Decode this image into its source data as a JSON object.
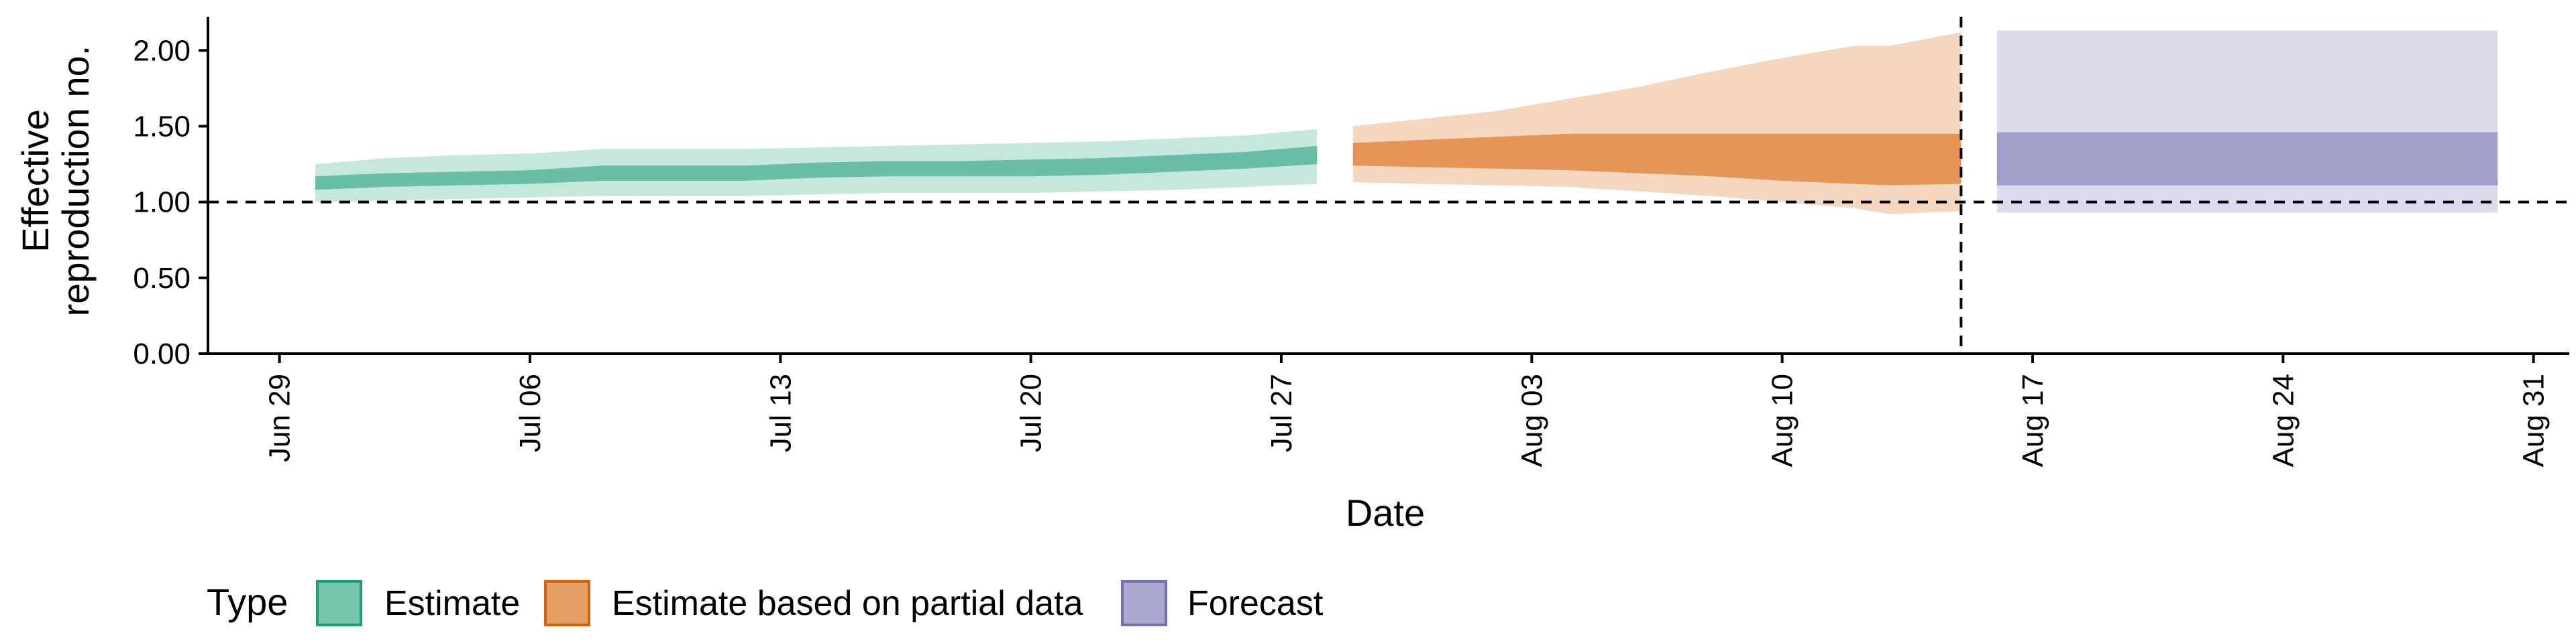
{
  "chart_data": {
    "type": "area",
    "xlabel": "Date",
    "ylabel_lines": [
      "Effective",
      "reproduction no."
    ],
    "ylim": [
      0,
      2.2
    ],
    "yticks": [
      0,
      0.5,
      1.0,
      1.5,
      2.0
    ],
    "ytick_labels": [
      "0.00",
      "0.50",
      "1.00",
      "1.50",
      "2.00"
    ],
    "xlim": [
      "2020-06-27",
      "2020-09-01"
    ],
    "xticks": [
      "2020-06-29",
      "2020-07-06",
      "2020-07-13",
      "2020-07-20",
      "2020-07-27",
      "2020-08-03",
      "2020-08-10",
      "2020-08-17",
      "2020-08-24",
      "2020-08-31"
    ],
    "xtick_labels": [
      "Jun 29",
      "Jul 06",
      "Jul 13",
      "Jul 20",
      "Jul 27",
      "Aug 03",
      "Aug 10",
      "Aug 17",
      "Aug 24",
      "Aug 31"
    ],
    "reference_line_y": 1.0,
    "reference_line_date": "2020-08-15",
    "legend": {
      "title": "Type",
      "position": "bottom",
      "entries": [
        "Estimate",
        "Estimate based on partial data",
        "Forecast"
      ]
    },
    "series": [
      {
        "name": "Estimate",
        "color": "#1b9e77",
        "dates": [
          "2020-06-30",
          "2020-07-02",
          "2020-07-04",
          "2020-07-06",
          "2020-07-08",
          "2020-07-10",
          "2020-07-12",
          "2020-07-14",
          "2020-07-16",
          "2020-07-18",
          "2020-07-20",
          "2020-07-22",
          "2020-07-24",
          "2020-07-26",
          "2020-07-28"
        ],
        "outer_lower": [
          1.0,
          1.01,
          1.02,
          1.03,
          1.04,
          1.04,
          1.04,
          1.05,
          1.06,
          1.06,
          1.06,
          1.07,
          1.08,
          1.1,
          1.12
        ],
        "outer_upper": [
          1.25,
          1.29,
          1.31,
          1.32,
          1.35,
          1.35,
          1.35,
          1.36,
          1.37,
          1.38,
          1.39,
          1.4,
          1.42,
          1.44,
          1.48
        ],
        "inner_lower": [
          1.08,
          1.1,
          1.11,
          1.12,
          1.14,
          1.14,
          1.14,
          1.16,
          1.17,
          1.17,
          1.17,
          1.18,
          1.2,
          1.22,
          1.25
        ],
        "inner_upper": [
          1.17,
          1.19,
          1.2,
          1.21,
          1.24,
          1.24,
          1.24,
          1.26,
          1.27,
          1.27,
          1.28,
          1.29,
          1.31,
          1.33,
          1.37
        ]
      },
      {
        "name": "Estimate based on partial data",
        "color": "#d95f02",
        "dates": [
          "2020-07-29",
          "2020-07-31",
          "2020-08-02",
          "2020-08-04",
          "2020-08-06",
          "2020-08-08",
          "2020-08-10",
          "2020-08-12",
          "2020-08-13",
          "2020-08-15"
        ],
        "outer_lower": [
          1.13,
          1.12,
          1.11,
          1.1,
          1.07,
          1.04,
          1.0,
          0.96,
          0.92,
          0.94
        ],
        "outer_upper": [
          1.5,
          1.55,
          1.6,
          1.68,
          1.76,
          1.86,
          1.95,
          2.03,
          2.03,
          2.12
        ],
        "inner_lower": [
          1.24,
          1.23,
          1.22,
          1.21,
          1.19,
          1.17,
          1.14,
          1.12,
          1.11,
          1.12
        ],
        "inner_upper": [
          1.39,
          1.41,
          1.43,
          1.45,
          1.45,
          1.45,
          1.45,
          1.45,
          1.45,
          1.45
        ]
      },
      {
        "name": "Forecast",
        "color": "#7570b3",
        "dates": [
          "2020-08-16",
          "2020-08-30"
        ],
        "outer_lower": [
          0.93,
          0.93
        ],
        "outer_upper": [
          2.13,
          2.13
        ],
        "inner_lower": [
          1.11,
          1.11
        ],
        "inner_upper": [
          1.46,
          1.46
        ]
      }
    ]
  }
}
